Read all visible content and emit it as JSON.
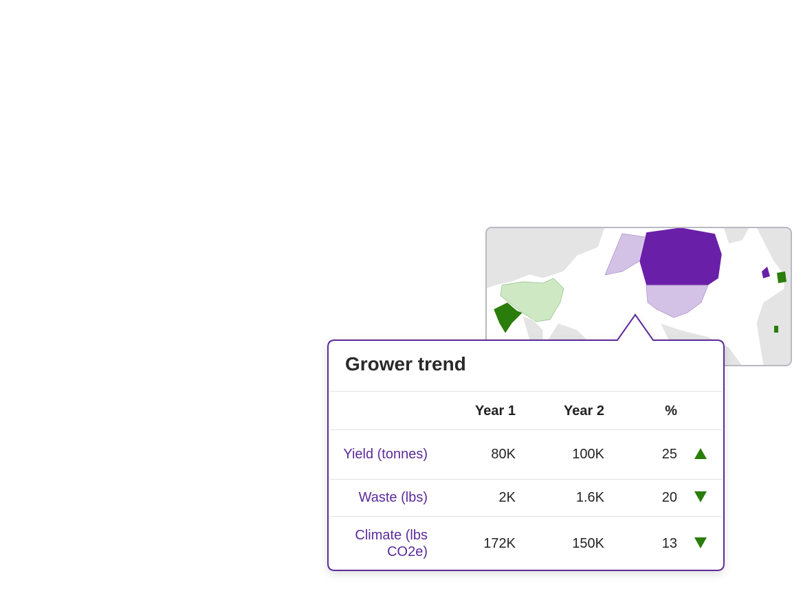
{
  "header": {
    "title": "Grower trend"
  },
  "table": {
    "columns": [
      "Year 1",
      "Year 2",
      "%"
    ],
    "rows": [
      {
        "label": "Yield (tonnes)",
        "year1": "80K",
        "year2": "100K",
        "change": 25,
        "trend": "up"
      },
      {
        "label": "Waste (lbs)",
        "year1": "2K",
        "year2": "1.6K",
        "change": 20,
        "trend": "down"
      },
      {
        "label": "Climate (lbs CO2e)",
        "year1": "172K",
        "year2": "150K",
        "change": 13,
        "trend": "down"
      }
    ],
    "trend_color": "#2a7d0a"
  }
}
